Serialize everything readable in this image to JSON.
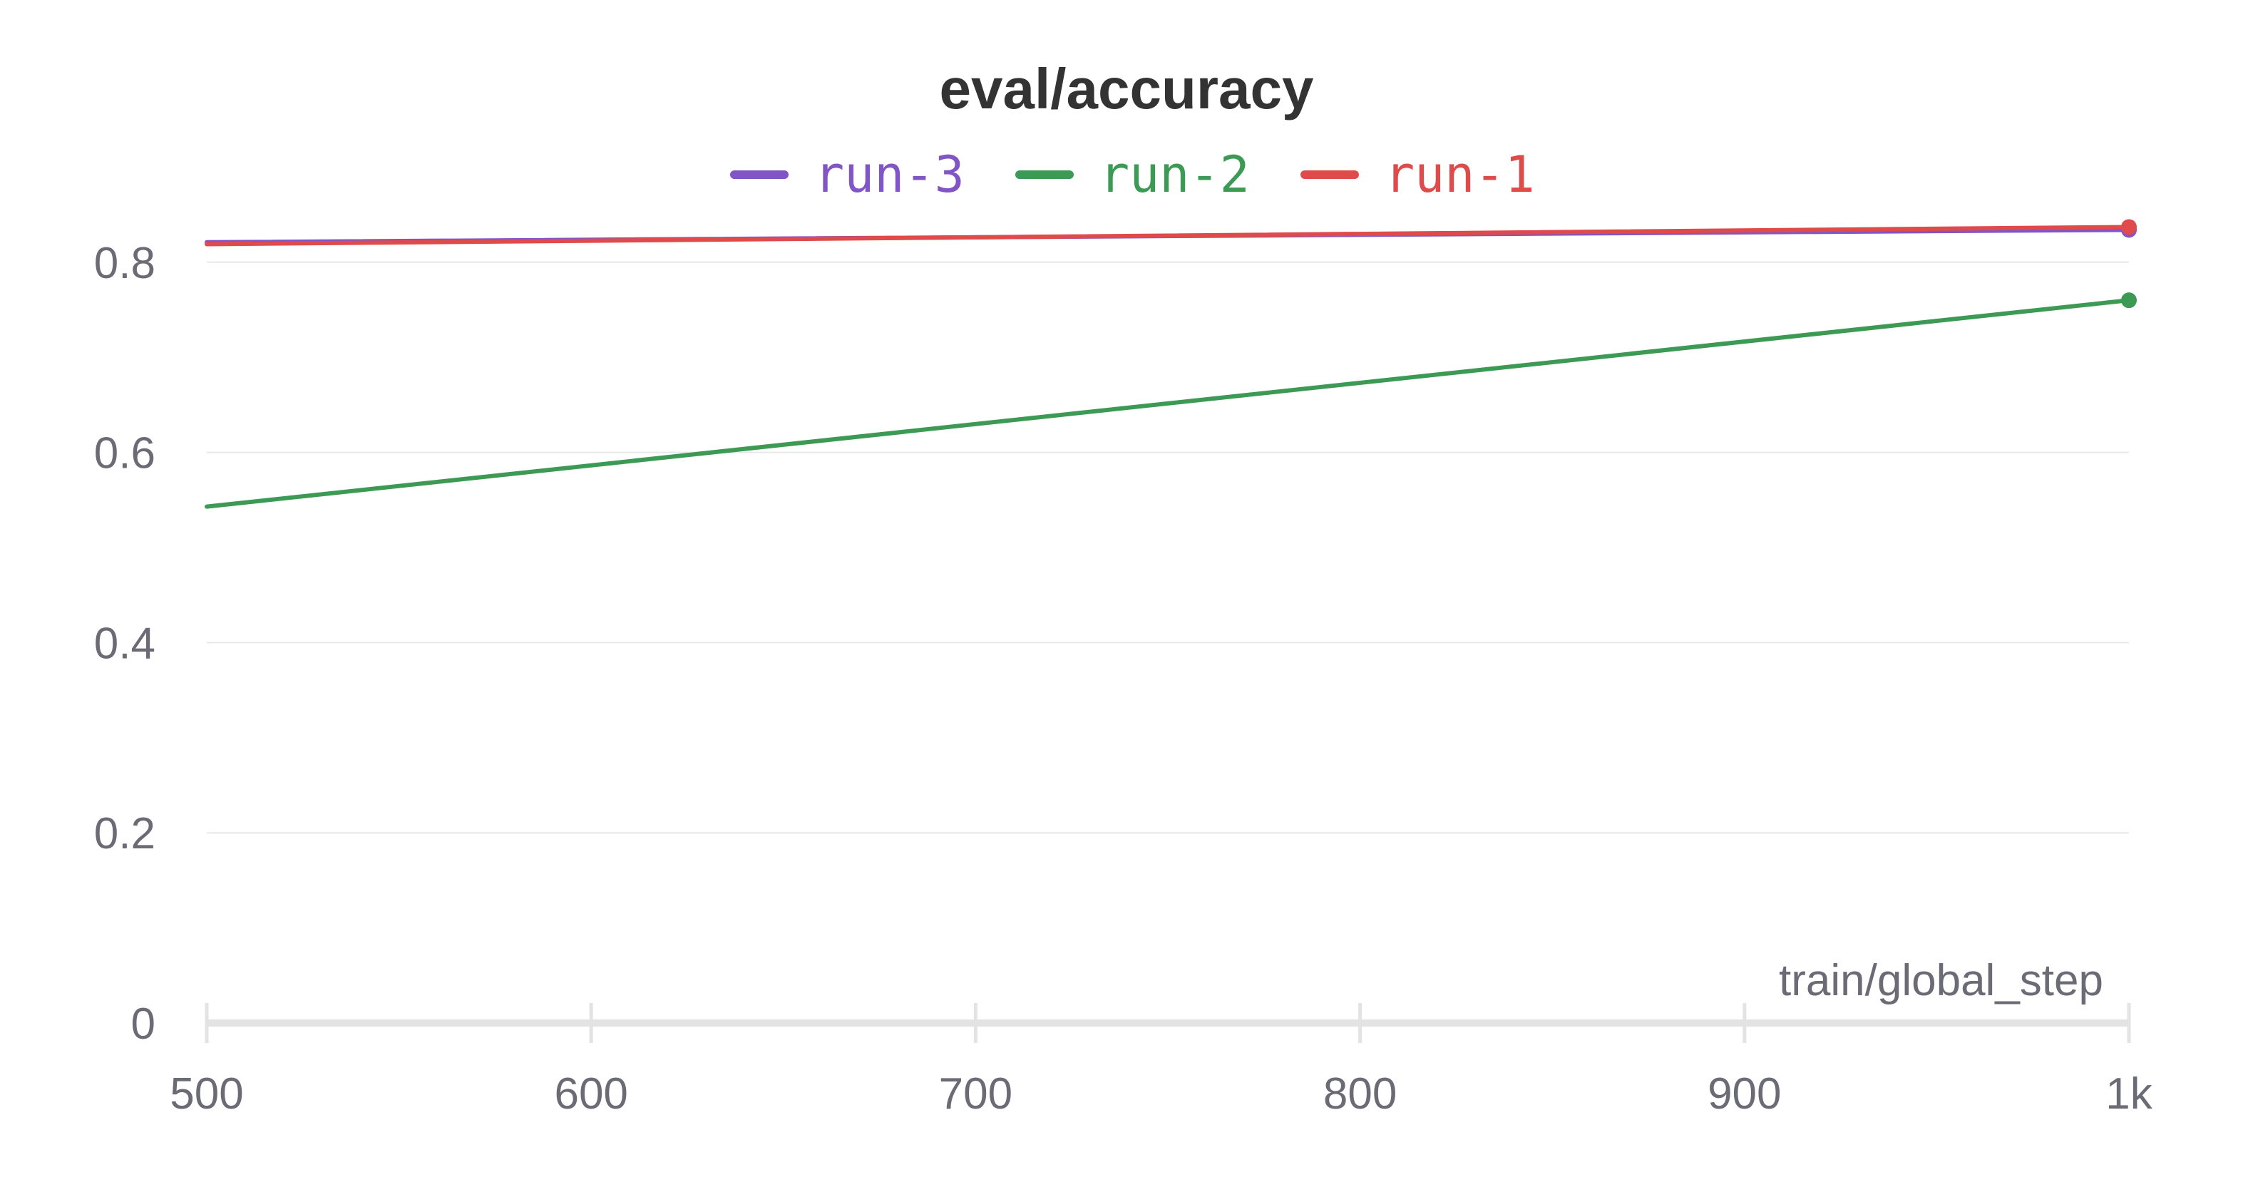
{
  "chart_data": {
    "type": "line",
    "title": "eval/accuracy",
    "xlabel": "train/global_step",
    "ylabel": "",
    "xlim": [
      500,
      1000
    ],
    "ylim": [
      0,
      0.84
    ],
    "x_ticks": [
      {
        "value": 500,
        "label": "500"
      },
      {
        "value": 600,
        "label": "600"
      },
      {
        "value": 700,
        "label": "700"
      },
      {
        "value": 800,
        "label": "800"
      },
      {
        "value": 900,
        "label": "900"
      },
      {
        "value": 1000,
        "label": "1k"
      }
    ],
    "y_ticks": [
      {
        "value": 0,
        "label": "0"
      },
      {
        "value": 0.2,
        "label": "0.2"
      },
      {
        "value": 0.4,
        "label": "0.4"
      },
      {
        "value": 0.6,
        "label": "0.6"
      },
      {
        "value": 0.8,
        "label": "0.8"
      }
    ],
    "grid": true,
    "legend_position": "top-center",
    "series": [
      {
        "name": "run-3",
        "color": "#8155c6",
        "x": [
          500,
          1000
        ],
        "y": [
          0.821,
          0.834
        ]
      },
      {
        "name": "run-2",
        "color": "#3d9a55",
        "x": [
          500,
          1000
        ],
        "y": [
          0.543,
          0.76
        ]
      },
      {
        "name": "run-1",
        "color": "#df4b4b",
        "x": [
          500,
          1000
        ],
        "y": [
          0.819,
          0.837
        ]
      }
    ]
  }
}
